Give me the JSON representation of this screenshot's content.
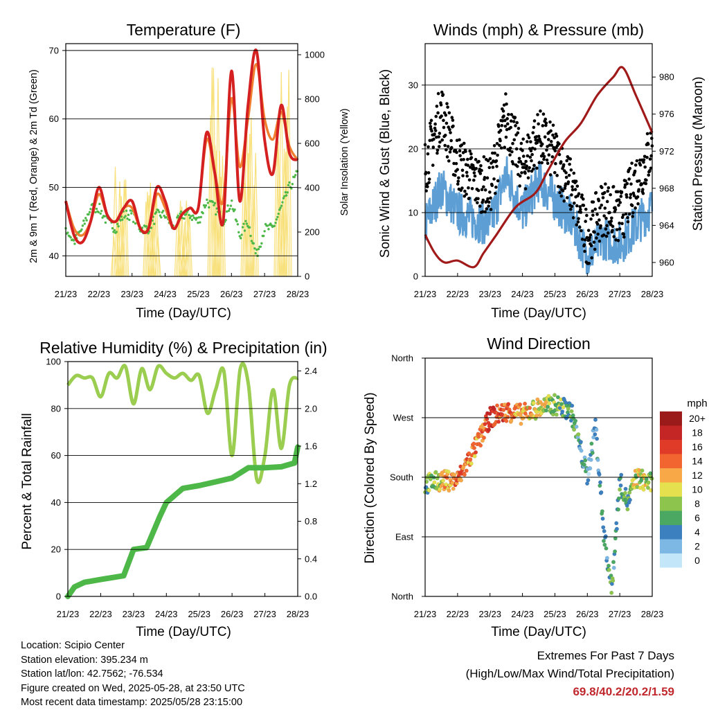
{
  "station": {
    "location": "Location: Scipio Center",
    "elevation": "Station elevation: 395.234 m",
    "latlon": "Station lat/lon: 42.7562; -76.534",
    "created": "Figure created on Wed, 2025-05-28, at 23:50 UTC",
    "latest": "Most recent data timestamp: 2025/05/28 23:15:00"
  },
  "extremes": {
    "title": "Extremes For Past 7 Days",
    "subtitle": "(High/Low/Max Wind/Total Precipitation)",
    "values": "69.8/40.2/20.2/1.59"
  },
  "chart_data": [
    {
      "type": "line",
      "title": "Temperature (F)",
      "xlabel": "Time (Day/UTC)",
      "ylabel": "2m & 9m T (Red, Orange) & 2m Td (Green)",
      "y2label": "Solar Insolation (Yellow)",
      "x_ticks": [
        "21/23",
        "22/23",
        "23/23",
        "24/23",
        "25/23",
        "26/23",
        "27/23",
        "28/23"
      ],
      "ylim": [
        37,
        71
      ],
      "y_ticks": [
        "40",
        "50",
        "60",
        "70"
      ],
      "y2lim": [
        0,
        1050
      ],
      "y2_ticks": [
        "0",
        "200",
        "400",
        "600",
        "800",
        "1000"
      ],
      "colors": {
        "t2m": "#d42020",
        "t9m": "#f08030",
        "td": "#4db848",
        "solar": "#f8e07a"
      },
      "x": [
        0,
        0.25,
        0.5,
        0.75,
        1,
        1.25,
        1.5,
        1.75,
        2,
        2.25,
        2.5,
        2.75,
        3,
        3.25,
        3.5,
        3.75,
        4,
        4.25,
        4.5,
        4.75,
        5,
        5.25,
        5.5,
        5.75,
        6,
        6.25,
        6.5,
        6.75,
        7
      ],
      "series": [
        {
          "key": "t2m",
          "values": [
            48,
            43,
            42,
            45,
            50,
            46,
            45,
            47,
            48,
            44,
            44,
            50,
            48,
            44,
            46,
            47,
            47,
            58,
            52,
            45,
            67,
            48,
            62,
            70,
            57,
            52,
            62,
            55,
            54
          ]
        },
        {
          "key": "t9m",
          "values": [
            48,
            44,
            43,
            45,
            49,
            46,
            45,
            47,
            47,
            44,
            44,
            49,
            47,
            44,
            46,
            47,
            47,
            57,
            52,
            48,
            63,
            53,
            60,
            68,
            60,
            57,
            61,
            56,
            54
          ]
        },
        {
          "key": "td",
          "values": [
            44,
            42,
            44,
            47,
            47,
            45,
            44,
            46,
            46,
            44,
            44,
            46,
            46,
            44,
            46,
            46,
            45,
            48,
            47,
            45,
            48,
            43,
            45,
            40,
            44,
            44,
            47,
            50,
            52
          ]
        }
      ],
      "solar": {
        "day_peaks": [
          1.63,
          2.6,
          3.55,
          4.55,
          5.55,
          6.55
        ],
        "peak_values": [
          520,
          480,
          360,
          1000,
          780,
          980
        ]
      }
    },
    {
      "type": "scatter",
      "title": "Winds (mph) & Pressure (mb)",
      "xlabel": "Time (Day/UTC)",
      "ylabel": "Sonic Wind & Gust (Blue, Black)",
      "y2label": "Station Pressure (Maroon)",
      "x_ticks": [
        "21/23",
        "22/23",
        "23/23",
        "24/23",
        "25/23",
        "26/23",
        "27/23",
        "28/23"
      ],
      "ylim": [
        0,
        36.5
      ],
      "y_ticks": [
        "0",
        "10",
        "20",
        "30"
      ],
      "y2lim": [
        958.5,
        983.6
      ],
      "y2_ticks": [
        "960",
        "964",
        "968",
        "972",
        "976",
        "980"
      ],
      "colors": {
        "wind": "#5d9fd5",
        "gust": "#000000",
        "pressure": "#a01a1a"
      },
      "x": [
        0,
        0.5,
        1,
        1.5,
        2,
        2.5,
        3,
        3.5,
        4,
        4.5,
        5,
        5.5,
        6,
        6.5,
        7
      ],
      "wind": [
        8,
        14,
        10,
        9,
        8,
        16,
        10,
        15,
        12,
        9,
        3,
        6,
        5,
        8,
        11
      ],
      "gust": [
        17,
        26,
        18,
        15,
        14,
        25,
        17,
        22,
        19,
        14,
        6,
        11,
        9,
        15,
        20
      ],
      "pressure_x": [
        0,
        0.3,
        0.6,
        1,
        1.5,
        1.8,
        2.2,
        2.8,
        3.4,
        3.8,
        4.3,
        4.8,
        5.3,
        5.8,
        6.1,
        6.5,
        7
      ],
      "pressure": [
        963,
        961,
        960,
        960.2,
        959.5,
        961,
        963,
        966,
        967.5,
        970,
        973,
        975,
        978,
        980,
        981,
        978,
        974
      ]
    },
    {
      "type": "line",
      "title": "Relative Humidity (%) & Precipitation (in)",
      "xlabel": "Time (Day/UTC)",
      "ylabel": "Percent & Total Rainfall",
      "x_ticks": [
        "21/23",
        "22/23",
        "23/23",
        "24/23",
        "25/23",
        "26/23",
        "27/23",
        "28/23"
      ],
      "ylim": [
        0,
        100
      ],
      "y_ticks": [
        "0",
        "20",
        "40",
        "60",
        "80",
        "100"
      ],
      "y2lim": [
        0,
        2.5
      ],
      "y2_ticks": [
        "0.0",
        "0.4",
        "0.8",
        "1.2",
        "1.6",
        "2.0",
        "2.4"
      ],
      "colors": {
        "rh": "#9acd50",
        "precip": "#4db848"
      },
      "x": [
        0,
        0.25,
        0.5,
        0.75,
        1,
        1.25,
        1.5,
        1.75,
        2,
        2.25,
        2.5,
        2.75,
        3,
        3.25,
        3.5,
        3.75,
        4,
        4.25,
        4.5,
        4.75,
        5,
        5.25,
        5.5,
        5.75,
        6,
        6.25,
        6.5,
        6.75,
        7
      ],
      "rh": [
        90,
        94,
        93,
        93,
        85,
        95,
        93,
        98,
        82,
        97,
        88,
        98,
        95,
        93,
        95,
        92,
        94,
        78,
        88,
        96,
        60,
        97,
        90,
        50,
        60,
        88,
        63,
        90,
        93
      ],
      "precip_x": [
        0,
        0.2,
        0.5,
        1,
        1.7,
        2.0,
        2.4,
        2.8,
        3.0,
        3.5,
        4.0,
        4.5,
        5.0,
        5.5,
        6.0,
        6.5,
        6.9,
        7.0
      ],
      "precip": [
        0,
        0.1,
        0.15,
        0.18,
        0.22,
        0.5,
        0.52,
        0.85,
        1.0,
        1.15,
        1.18,
        1.22,
        1.26,
        1.37,
        1.37,
        1.38,
        1.42,
        1.59
      ]
    },
    {
      "type": "scatter",
      "title": "Wind Direction",
      "xlabel": "Time (Day/UTC)",
      "ylabel": "Direction (Colored By Speed)",
      "x_ticks": [
        "21/23",
        "22/23",
        "23/23",
        "24/23",
        "25/23",
        "26/23",
        "27/23",
        "28/23"
      ],
      "y_ticks": [
        "North",
        "East",
        "South",
        "West",
        "North"
      ],
      "legend": {
        "unit": "mph",
        "labels": [
          "20+",
          "18",
          "16",
          "14",
          "12",
          "10",
          "8",
          "6",
          "4",
          "2",
          "0"
        ],
        "colors": [
          "#9b1b1b",
          "#c42525",
          "#e03a28",
          "#f26531",
          "#f9a848",
          "#e5e04d",
          "#8cc44e",
          "#4aa862",
          "#3c80c0",
          "#7db8e4",
          "#c3e7f8"
        ]
      },
      "x": [
        0,
        0.5,
        1,
        1.5,
        2,
        2.5,
        3,
        3.5,
        4,
        4.5,
        5,
        5.25,
        5.5,
        5.75,
        6,
        6.25,
        6.5,
        7
      ],
      "direction_deg": [
        170,
        175,
        175,
        220,
        270,
        280,
        275,
        285,
        290,
        280,
        180,
        260,
        100,
        10,
        175,
        140,
        180,
        170
      ],
      "speed": [
        6,
        10,
        14,
        12,
        16,
        14,
        12,
        10,
        8,
        6,
        3,
        4,
        5,
        6,
        5,
        6,
        9,
        8
      ]
    }
  ]
}
